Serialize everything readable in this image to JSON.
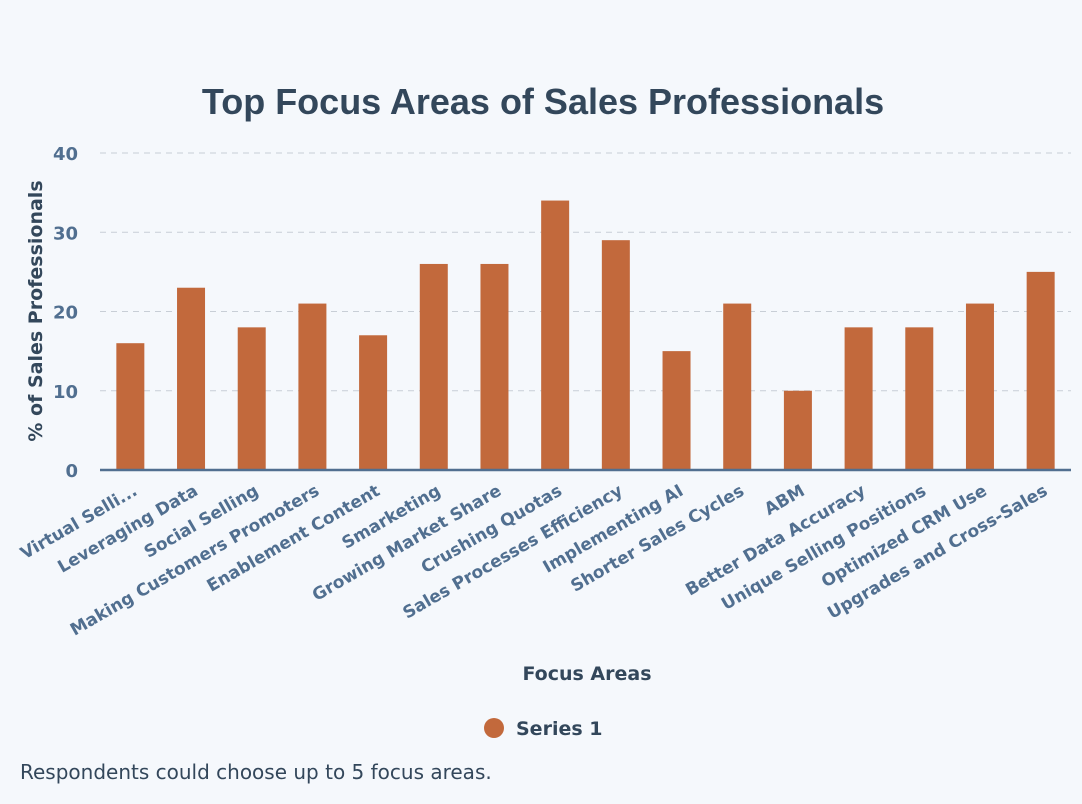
{
  "chart_data": {
    "type": "bar",
    "title": "Top Focus Areas of Sales Professionals",
    "xlabel": "Focus Areas",
    "ylabel": "% of Sales Professionals",
    "ylim": [
      0,
      40
    ],
    "yticks": [
      0,
      10,
      20,
      30,
      40
    ],
    "grid": true,
    "legend_position": "bottom-center",
    "categories": [
      "Virtual Selli...",
      "Leveraging Data",
      "Social Selling",
      "Making Customers Promoters",
      "Enablement Content",
      "Smarketing",
      "Growing Market Share",
      "Crushing Quotas",
      "Sales Processes Efficiency",
      "Implementing AI",
      "Shorter Sales Cycles",
      "ABM",
      "Better Data Accuracy",
      "Unique Selling Positions",
      "Optimized CRM Use",
      "Upgrades and Cross-Sales"
    ],
    "series": [
      {
        "name": "Series 1",
        "color": "#c2693c",
        "values": [
          16,
          23,
          18,
          21,
          17,
          26,
          26,
          34,
          29,
          15,
          21,
          10,
          18,
          18,
          21,
          25
        ]
      }
    ]
  },
  "footnote": "Respondents could choose up to 5 focus areas."
}
